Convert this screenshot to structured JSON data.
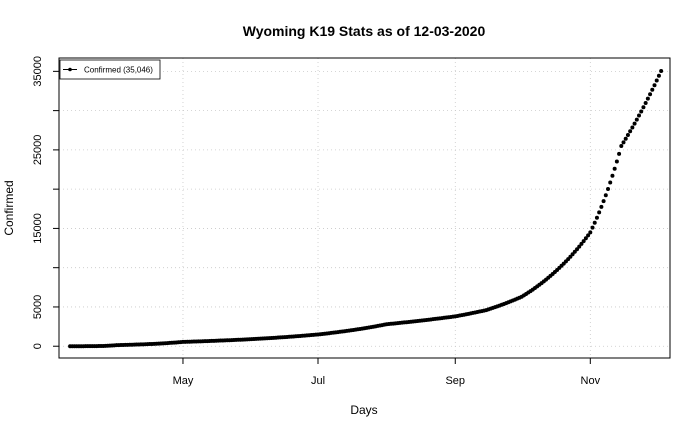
{
  "chart_data": {
    "type": "scatter",
    "title": "Wyoming K19 Stats as of 12-03-2020",
    "xlabel": "Days",
    "ylabel": "Confirmed",
    "x_start": "2020-03-11",
    "x_end": "2020-12-03",
    "xlim": [
      "2020-03-06",
      "2020-12-07"
    ],
    "ylim": [
      -1500,
      36700
    ],
    "y_ticks": [
      0,
      5000,
      15000,
      25000,
      35000
    ],
    "y_minor_ticks": [
      0,
      5000,
      10000,
      15000,
      20000,
      25000,
      30000,
      35000
    ],
    "x_ticks": [
      {
        "label": "May",
        "date": "2020-05-01"
      },
      {
        "label": "Jul",
        "date": "2020-07-01"
      },
      {
        "label": "Sep",
        "date": "2020-09-01"
      },
      {
        "label": "Nov",
        "date": "2020-11-01"
      }
    ],
    "grid": true,
    "legend_position": "top-left",
    "series": [
      {
        "name": "Confirmed (35,046)",
        "color": "#000000",
        "anchors": [
          {
            "x": "2020-03-11",
            "y": 1
          },
          {
            "x": "2020-04-01",
            "y": 140
          },
          {
            "x": "2020-05-01",
            "y": 550
          },
          {
            "x": "2020-06-01",
            "y": 900
          },
          {
            "x": "2020-07-01",
            "y": 1500
          },
          {
            "x": "2020-08-01",
            "y": 2800
          },
          {
            "x": "2020-09-01",
            "y": 3800
          },
          {
            "x": "2020-09-15",
            "y": 4600
          },
          {
            "x": "2020-10-01",
            "y": 6300
          },
          {
            "x": "2020-10-15",
            "y": 9200
          },
          {
            "x": "2020-11-01",
            "y": 14500
          },
          {
            "x": "2020-11-15",
            "y": 25500
          },
          {
            "x": "2020-12-03",
            "y": 35046
          }
        ]
      }
    ]
  }
}
